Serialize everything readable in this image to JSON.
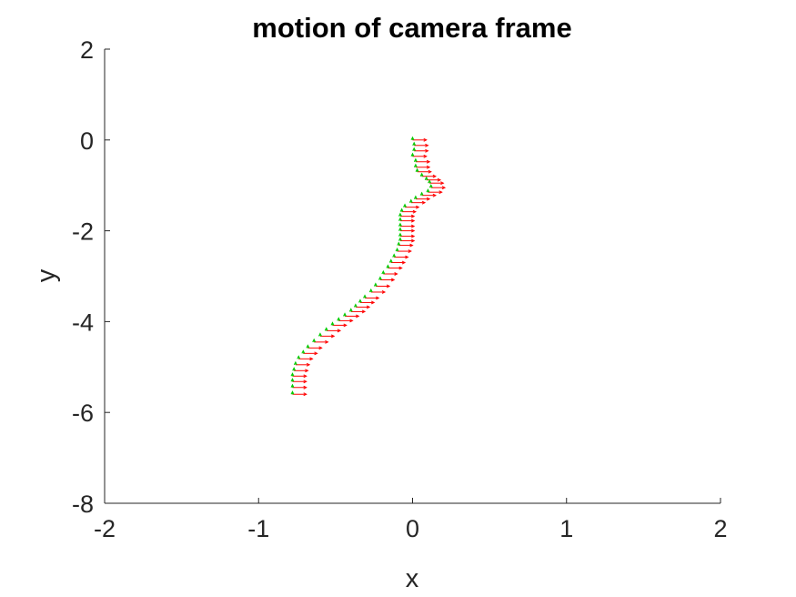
{
  "chart_data": {
    "type": "line",
    "title": "motion of camera frame",
    "xlabel": "x",
    "ylabel": "y",
    "xlim": [
      -2,
      2
    ],
    "ylim": [
      -8,
      2
    ],
    "xticks": [
      -2,
      -1,
      0,
      1,
      2
    ],
    "yticks": [
      -8,
      -6,
      -4,
      -2,
      0,
      2
    ],
    "grid": false,
    "legend": "none",
    "colors": {
      "x_axis_arrow": "#ff0000",
      "y_axis_arrow": "#00cc00",
      "axes": "#262626"
    },
    "arrow_lengths": {
      "x_axis": 0.09,
      "y_axis": 0.06
    },
    "series": [
      {
        "x": [
          0.0,
          0.01,
          0.01,
          0.0,
          0.02,
          0.02,
          0.03,
          0.06,
          0.09,
          0.11,
          0.12,
          0.1,
          0.06,
          0.02,
          -0.01,
          -0.05,
          -0.07,
          -0.08,
          -0.08,
          -0.08,
          -0.08,
          -0.08,
          -0.08,
          -0.09,
          -0.1,
          -0.12,
          -0.14,
          -0.16,
          -0.19,
          -0.21,
          -0.24,
          -0.27,
          -0.31,
          -0.34,
          -0.37,
          -0.4,
          -0.44,
          -0.48,
          -0.52,
          -0.56,
          -0.6,
          -0.64,
          -0.68,
          -0.71,
          -0.74,
          -0.76,
          -0.77,
          -0.78,
          -0.78,
          -0.78,
          -0.78
        ],
        "y": [
          0.0,
          -0.12,
          -0.24,
          -0.36,
          -0.48,
          -0.6,
          -0.7,
          -0.8,
          -0.88,
          -0.95,
          -1.05,
          -1.15,
          -1.22,
          -1.3,
          -1.38,
          -1.48,
          -1.58,
          -1.68,
          -1.78,
          -1.9,
          -2.0,
          -2.12,
          -2.22,
          -2.32,
          -2.45,
          -2.58,
          -2.7,
          -2.82,
          -2.95,
          -3.08,
          -3.22,
          -3.35,
          -3.48,
          -3.58,
          -3.68,
          -3.78,
          -3.88,
          -3.98,
          -4.08,
          -4.2,
          -4.32,
          -4.45,
          -4.58,
          -4.7,
          -4.82,
          -4.95,
          -5.08,
          -5.2,
          -5.32,
          -5.45,
          -5.6
        ]
      }
    ]
  }
}
